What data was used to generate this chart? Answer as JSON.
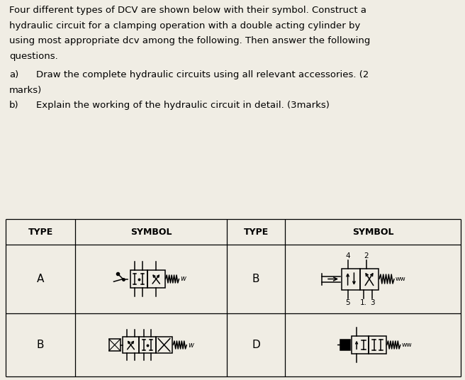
{
  "bg_color": "#f0ede4",
  "text_color": "#000000",
  "fig_w": 6.56,
  "fig_h": 5.36,
  "para_lines": [
    "Four different types of DCV are shown below with their symbol. Construct a",
    "hydraulic circuit for a clamping operation with a double acting cylinder by",
    "using most appropriate dcv among the following. Then answer the following",
    "questions."
  ],
  "qa_lines": [
    [
      "a)",
      "   Draw the complete hydraulic circuits using all relevant accessories. (2"
    ],
    [
      "",
      "marks)"
    ],
    [
      "b)",
      "   Explain the working of the hydraulic circuit in detail. (3marks)"
    ]
  ],
  "col_headers": [
    "TYPE",
    "SYMBOL",
    "TYPE",
    "SYMBOL"
  ],
  "row1_labels": [
    "A",
    "B"
  ],
  "row2_labels": [
    "B",
    "D"
  ],
  "font_size_text": 9.5,
  "font_size_header": 9.0,
  "font_size_label": 11
}
